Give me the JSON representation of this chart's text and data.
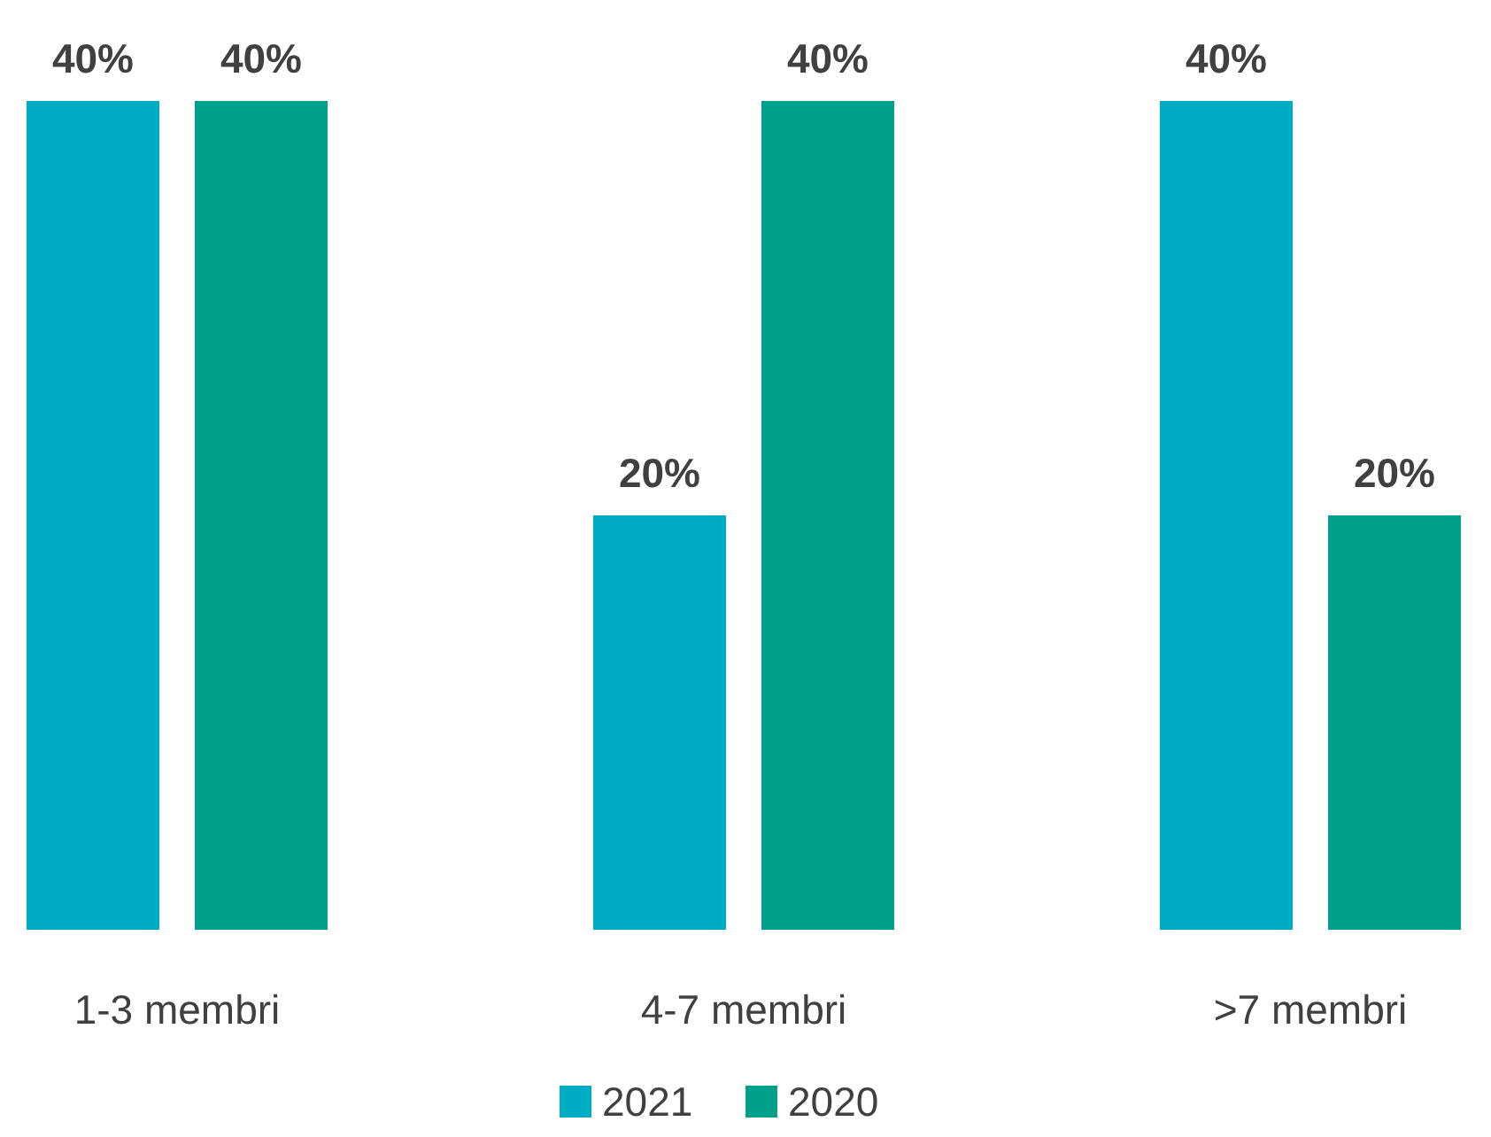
{
  "chart_data": {
    "type": "bar",
    "categories": [
      "1-3 membri",
      "4-7 membri",
      ">7 membri"
    ],
    "series": [
      {
        "name": "2021",
        "color": "#00acc1",
        "values": [
          40,
          20,
          40
        ],
        "value_labels": [
          "40%",
          "20%",
          "40%"
        ]
      },
      {
        "name": "2020",
        "color": "#00a08a",
        "values": [
          40,
          40,
          20
        ],
        "value_labels": [
          "40%",
          "40%",
          "20%"
        ]
      }
    ],
    "legend": "bottom"
  }
}
